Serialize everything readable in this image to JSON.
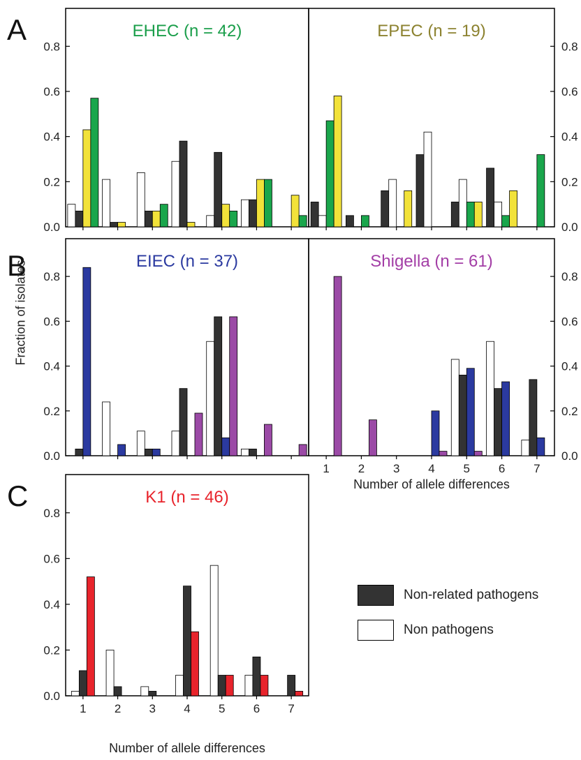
{
  "figure": {
    "panel_letters": [
      "A",
      "B",
      "C"
    ],
    "ylabel": "Fraction of isolates",
    "xlabel": "Number of allele differences",
    "legend": [
      {
        "label": "Non-related pathogens",
        "color": "#333333"
      },
      {
        "label": "Non pathogens",
        "color": "#ffffff"
      }
    ]
  },
  "chart_data": [
    {
      "type": "bar",
      "title": "EHEC (n = 42)",
      "title_color": "#1a9e4a",
      "categories": [
        "1",
        "2",
        "3",
        "4",
        "5",
        "6",
        "7"
      ],
      "ylim": [
        0,
        0.9
      ],
      "yticks": [
        "0.0",
        "0.2",
        "0.4",
        "0.6",
        "0.8"
      ],
      "y_axis_side": "left",
      "show_x_tick_labels": false,
      "series": [
        {
          "color": "#ffffff",
          "values": [
            0.1,
            0.21,
            0.24,
            0.29,
            0.05,
            0.12,
            0
          ]
        },
        {
          "color": "#333333",
          "values": [
            0.07,
            0.02,
            0.07,
            0.38,
            0.33,
            0.12,
            0
          ]
        },
        {
          "color": "#f2e23a",
          "values": [
            0.43,
            0.02,
            0.07,
            0.02,
            0.1,
            0.21,
            0.14
          ]
        },
        {
          "color": "#1aa64c",
          "values": [
            0.57,
            0,
            0.1,
            0,
            0.07,
            0.21,
            0.05
          ]
        }
      ]
    },
    {
      "type": "bar",
      "title": "EPEC (n = 19)",
      "title_color": "#8c8230",
      "categories": [
        "1",
        "2",
        "3",
        "4",
        "5",
        "6",
        "7"
      ],
      "ylim": [
        0,
        0.9
      ],
      "yticks": [
        "0.0",
        "0.2",
        "0.4",
        "0.6",
        "0.8"
      ],
      "y_axis_side": "right",
      "show_x_tick_labels": false,
      "series": [
        {
          "color": "#333333",
          "values": [
            0.11,
            0.05,
            0.16,
            0.32,
            0.11,
            0.26,
            0
          ]
        },
        {
          "color": "#ffffff",
          "values": [
            0.05,
            0,
            0.21,
            0.42,
            0.21,
            0.11,
            0
          ]
        },
        {
          "color": "#1aa64c",
          "values": [
            0.47,
            0.05,
            0,
            0,
            0.11,
            0.05,
            0.32
          ]
        },
        {
          "color": "#f2e23a",
          "values": [
            0.58,
            0,
            0.16,
            0,
            0.11,
            0.16,
            0
          ]
        }
      ]
    },
    {
      "type": "bar",
      "title": "EIEC (n = 37)",
      "title_color": "#2b3aa0",
      "categories": [
        "1",
        "2",
        "3",
        "4",
        "5",
        "6",
        "7"
      ],
      "ylim": [
        0,
        0.9
      ],
      "yticks": [
        "0.0",
        "0.2",
        "0.4",
        "0.6",
        "0.8"
      ],
      "y_axis_side": "left",
      "show_x_tick_labels": false,
      "series": [
        {
          "color": "#ffffff",
          "values": [
            0,
            0.24,
            0.11,
            0.11,
            0.51,
            0.03,
            0
          ]
        },
        {
          "color": "#333333",
          "values": [
            0.03,
            0,
            0.03,
            0.3,
            0.62,
            0.03,
            0
          ]
        },
        {
          "color": "#2b3aa0",
          "values": [
            0.84,
            0.05,
            0.03,
            0,
            0.08,
            0,
            0
          ]
        },
        {
          "color": "#9b4aa6",
          "values": [
            0,
            0,
            0,
            0.19,
            0.62,
            0.14,
            0.05
          ]
        }
      ]
    },
    {
      "type": "bar",
      "title": "Shigella (n = 61)",
      "title_color": "#a33ea6",
      "categories": [
        "1",
        "2",
        "3",
        "4",
        "5",
        "6",
        "7"
      ],
      "ylim": [
        0,
        0.9
      ],
      "yticks": [
        "0.0",
        "0.2",
        "0.4",
        "0.6",
        "0.8"
      ],
      "y_axis_side": "right",
      "show_x_tick_labels": true,
      "series": [
        {
          "color": "#ffffff",
          "values": [
            0,
            0,
            0,
            0,
            0.43,
            0.51,
            0.07
          ]
        },
        {
          "color": "#333333",
          "values": [
            0,
            0,
            0,
            0,
            0.36,
            0.3,
            0.34
          ]
        },
        {
          "color": "#2b3aa0",
          "values": [
            0,
            0,
            0,
            0.2,
            0.39,
            0.33,
            0.08
          ]
        },
        {
          "color": "#9b4aa6",
          "values": [
            0.8,
            0.16,
            0,
            0.02,
            0.02,
            0,
            0
          ]
        }
      ]
    },
    {
      "type": "bar",
      "title": "K1 (n = 46)",
      "title_color": "#e8242c",
      "categories": [
        "1",
        "2",
        "3",
        "4",
        "5",
        "6",
        "7"
      ],
      "ylim": [
        0,
        0.9
      ],
      "yticks": [
        "0.0",
        "0.2",
        "0.4",
        "0.6",
        "0.8"
      ],
      "y_axis_side": "left",
      "show_x_tick_labels": true,
      "series": [
        {
          "color": "#ffffff",
          "values": [
            0.02,
            0.2,
            0.04,
            0.09,
            0.57,
            0.09,
            0
          ]
        },
        {
          "color": "#333333",
          "values": [
            0.11,
            0.04,
            0.02,
            0.48,
            0.09,
            0.17,
            0.09
          ]
        },
        {
          "color": "#e8242c",
          "values": [
            0.52,
            0,
            0,
            0.28,
            0.09,
            0.09,
            0.02
          ]
        }
      ]
    }
  ]
}
